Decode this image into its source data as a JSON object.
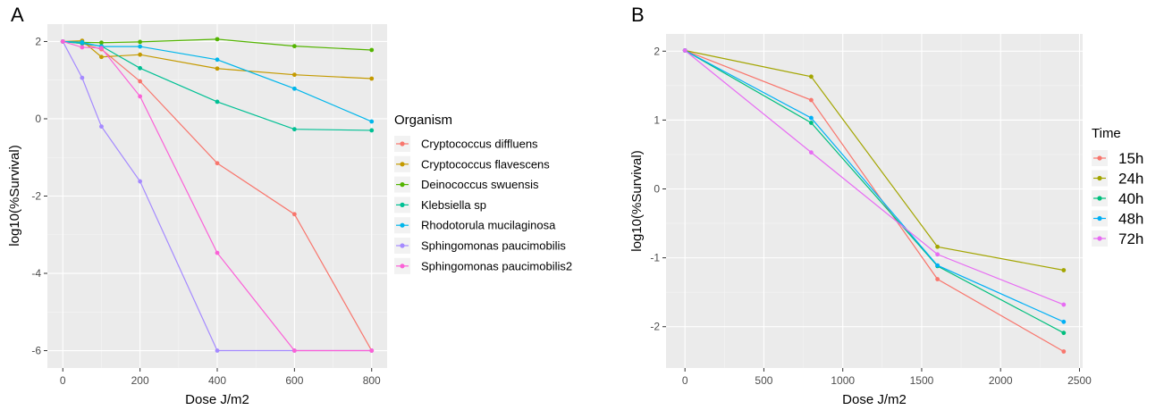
{
  "panels": [
    {
      "letter": "A",
      "legend": {
        "title": "Organism"
      },
      "chart_data": {
        "type": "line",
        "xlabel": "Dose J/m2",
        "ylabel": "log10(%Survival)",
        "xlim": [
          -40,
          840
        ],
        "ylim": [
          -6.45,
          2.45
        ],
        "xticks": [
          0,
          200,
          400,
          600,
          800
        ],
        "yticks": [
          2,
          0,
          -2,
          -4,
          -6
        ],
        "grid": true,
        "legend_position": "right",
        "series": [
          {
            "name": "Cryptococcus diffluens",
            "color": "#F8766D",
            "x": [
              0,
              50,
              100,
              200,
              400,
              600,
              800
            ],
            "y": [
              2.0,
              1.95,
              1.8,
              0.97,
              -1.15,
              -2.47,
              -6.0
            ]
          },
          {
            "name": "Cryptococcus flavescens",
            "color": "#C49A00",
            "x": [
              0,
              50,
              100,
              200,
              400,
              600,
              800
            ],
            "y": [
              2.0,
              2.02,
              1.6,
              1.66,
              1.3,
              1.14,
              1.04
            ]
          },
          {
            "name": "Deinococcus swuensis",
            "color": "#53B400",
            "x": [
              0,
              50,
              100,
              200,
              400,
              600,
              800
            ],
            "y": [
              2.0,
              1.98,
              1.97,
              1.99,
              2.06,
              1.88,
              1.78
            ]
          },
          {
            "name": "Klebsiella sp",
            "color": "#00C094",
            "x": [
              0,
              50,
              100,
              200,
              400,
              600,
              800
            ],
            "y": [
              2.0,
              1.95,
              1.88,
              1.31,
              0.44,
              -0.27,
              -0.3
            ]
          },
          {
            "name": "Rhodotorula mucilaginosa",
            "color": "#00B6EB",
            "x": [
              0,
              50,
              100,
              200,
              400,
              600,
              800
            ],
            "y": [
              2.0,
              1.98,
              1.87,
              1.87,
              1.53,
              0.78,
              -0.07
            ]
          },
          {
            "name": "Sphingomonas paucimobilis",
            "color": "#A58AFF",
            "x": [
              0,
              50,
              100,
              200,
              400,
              600,
              800
            ],
            "y": [
              2.0,
              1.06,
              -0.2,
              -1.62,
              -6.0,
              -6.0,
              -6.0
            ]
          },
          {
            "name": "Sphingomonas paucimobilis2",
            "color": "#FB61D7",
            "x": [
              0,
              50,
              100,
              200,
              400,
              600,
              800
            ],
            "y": [
              2.0,
              1.85,
              1.83,
              0.58,
              -3.47,
              -6.0,
              -6.0
            ]
          }
        ]
      }
    },
    {
      "letter": "B",
      "legend": {
        "title": "Time"
      },
      "chart_data": {
        "type": "line",
        "xlabel": "Dose J/m2",
        "ylabel": "log10(%Survival)",
        "xlim": [
          -120,
          2520
        ],
        "ylim": [
          -2.6,
          2.25
        ],
        "xticks": [
          0,
          500,
          1000,
          1500,
          2000,
          2500
        ],
        "yticks": [
          2,
          1,
          0,
          -1,
          -2
        ],
        "grid": true,
        "legend_position": "right",
        "series": [
          {
            "name": "15h",
            "color": "#F8766D",
            "x": [
              0,
              800,
              1600,
              2400
            ],
            "y": [
              2.01,
              1.29,
              -1.31,
              -2.36
            ]
          },
          {
            "name": "24h",
            "color": "#A3A500",
            "x": [
              0,
              800,
              1600,
              2400
            ],
            "y": [
              2.01,
              1.63,
              -0.84,
              -1.18
            ]
          },
          {
            "name": "40h",
            "color": "#00BF7D",
            "x": [
              0,
              800,
              1600,
              2400
            ],
            "y": [
              2.01,
              0.96,
              -1.12,
              -2.09
            ]
          },
          {
            "name": "48h",
            "color": "#00B0F6",
            "x": [
              0,
              800,
              1600,
              2400
            ],
            "y": [
              2.01,
              1.03,
              -1.11,
              -1.93
            ]
          },
          {
            "name": "72h",
            "color": "#E76BF3",
            "x": [
              0,
              800,
              1600,
              2400
            ],
            "y": [
              2.01,
              0.53,
              -0.95,
              -1.68
            ]
          }
        ]
      }
    }
  ]
}
